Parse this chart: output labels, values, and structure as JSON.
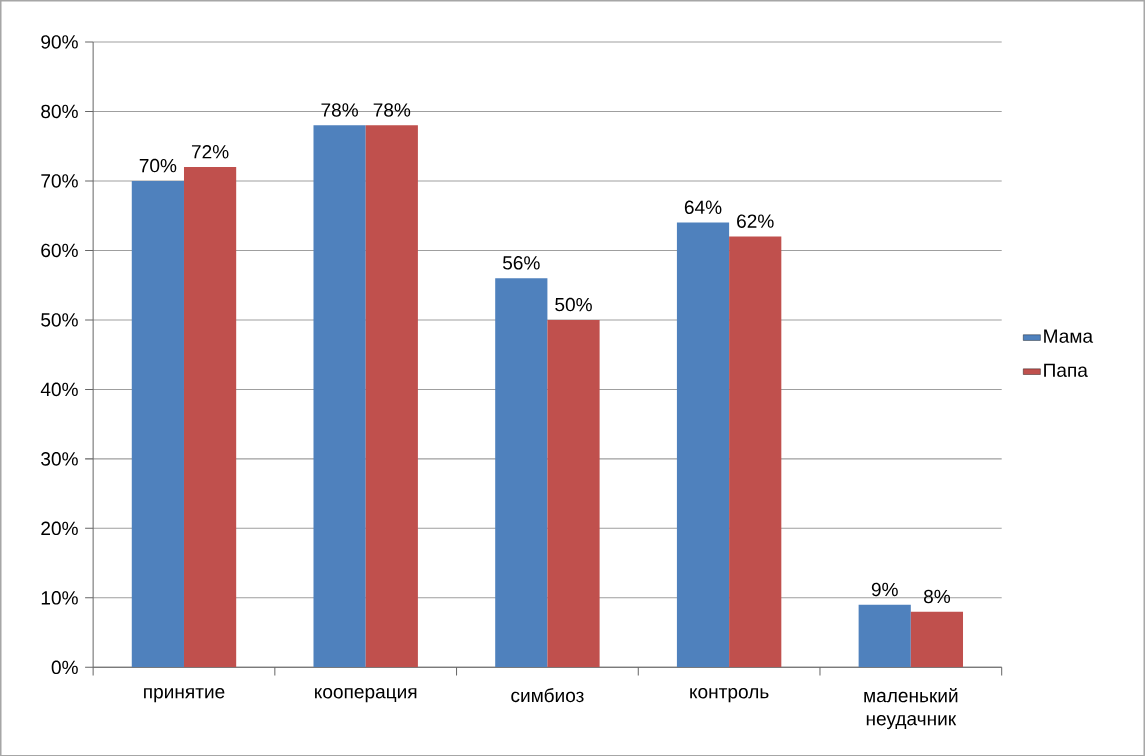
{
  "chart_data": {
    "type": "bar",
    "categories": [
      "принятие",
      "кооперация",
      "симбиоз",
      "контроль",
      "маленький неудачник"
    ],
    "series": [
      {
        "name": "Мама",
        "color": "#4f81bd",
        "values": [
          70,
          78,
          56,
          64,
          9
        ],
        "value_labels": [
          "70%",
          "78%",
          "56%",
          "64%",
          "9%"
        ]
      },
      {
        "name": "Папа",
        "color": "#c0504d",
        "values": [
          72,
          78,
          50,
          62,
          8
        ],
        "value_labels": [
          "72%",
          "78%",
          "50%",
          "62%",
          "8%"
        ]
      }
    ],
    "ylim": [
      0,
      90
    ],
    "yticks": [
      {
        "value": 0,
        "label": "0%"
      },
      {
        "value": 10,
        "label": "10%"
      },
      {
        "value": 20,
        "label": "20%"
      },
      {
        "value": 30,
        "label": "30%"
      },
      {
        "value": 40,
        "label": "40%"
      },
      {
        "value": 50,
        "label": "50%"
      },
      {
        "value": 60,
        "label": "60%"
      },
      {
        "value": 70,
        "label": "70%"
      },
      {
        "value": 80,
        "label": "80%"
      },
      {
        "value": 90,
        "label": "90%"
      }
    ],
    "grid": "y",
    "legend": "right"
  }
}
